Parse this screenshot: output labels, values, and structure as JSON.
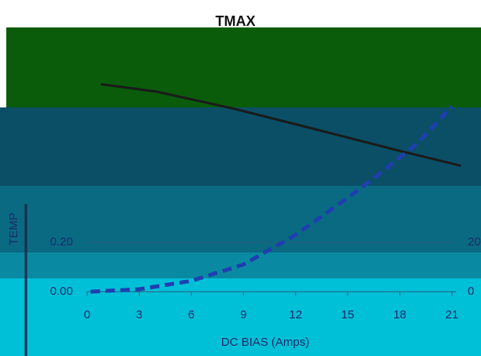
{
  "chart_data": {
    "type": "line",
    "title": "TMAX",
    "x_label": "DC BIAS (Amps)",
    "y_label": "TEMP",
    "xlim": [
      0,
      21
    ],
    "xticks": [
      0,
      3,
      6,
      9,
      12,
      15,
      18,
      21
    ],
    "ylim": [
      0,
      1
    ],
    "yticks": [
      {
        "value": 0,
        "label": "0.00"
      },
      {
        "value": 0.2,
        "label": "0.20"
      }
    ],
    "y2lim": [
      0,
      100
    ],
    "y2ticks": [
      0,
      20
    ],
    "series": [
      {
        "color": "#1a1a1a",
        "dash": false,
        "x": [
          0.8,
          4,
          8.5,
          13,
          18,
          21.5
        ],
        "values": [
          0.84,
          0.81,
          0.74,
          0.66,
          0.57,
          0.51
        ]
      },
      {
        "color": "#1f3fb0",
        "dash": true,
        "axis": "y2",
        "x": [
          0.2,
          3,
          6,
          9,
          12,
          15,
          16.7,
          19,
          21
        ],
        "values": [
          0,
          1,
          4.4,
          11,
          23,
          38,
          47,
          60,
          75
        ]
      }
    ]
  }
}
